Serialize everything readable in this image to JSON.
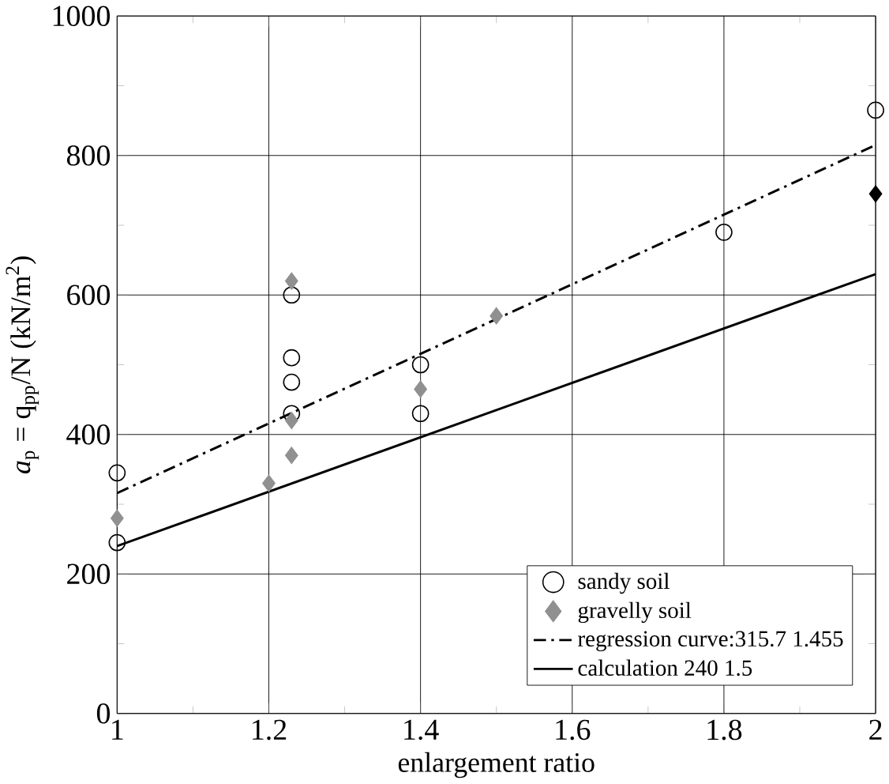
{
  "chart_data": {
    "type": "scatter",
    "xlabel": "enlargement ratio",
    "ylabel": "*a*$_{p}$ = q$_{pp}$/N (kN/m$^{2}$)",
    "xlim": [
      1,
      2
    ],
    "ylim": [
      0,
      1000
    ],
    "xticks": [
      1,
      1.2,
      1.4,
      1.6,
      1.8,
      2
    ],
    "yticks": [
      0,
      200,
      400,
      600,
      800,
      1000
    ],
    "grid": true,
    "legend": "bottom right",
    "series": [
      {
        "name": "sandy soil",
        "marker": "circle",
        "color": "#000000",
        "x": [
          1,
          1,
          1.23,
          1.23,
          1.23,
          1.23,
          1.4,
          1.4,
          1.8,
          2
        ],
        "values": [
          345,
          245,
          600,
          510,
          475,
          430,
          500,
          430,
          690,
          865
        ]
      },
      {
        "name": "gravelly soil",
        "marker": "diamond",
        "color": "#909090",
        "x": [
          1,
          1.2,
          1.23,
          1.23,
          1.23,
          1.4,
          1.5
        ],
        "values": [
          280,
          330,
          620,
          420,
          370,
          465,
          570
        ]
      },
      {
        "name": "regression curve:315.7 1.455",
        "type": "line",
        "marker": "none",
        "line_style": "dashdot",
        "color": "#000000",
        "x": [
          1,
          2
        ],
        "values": [
          316,
          815
        ]
      },
      {
        "name": "calculation 240 1.5",
        "type": "line",
        "marker": "none",
        "line_style": "solid",
        "color": "#000000",
        "x": [
          1,
          2
        ],
        "values": [
          240,
          630
        ]
      },
      {
        "marker": "diamond",
        "color": "#000000",
        "x": [
          2
        ],
        "values": [
          745
        ]
      }
    ]
  }
}
